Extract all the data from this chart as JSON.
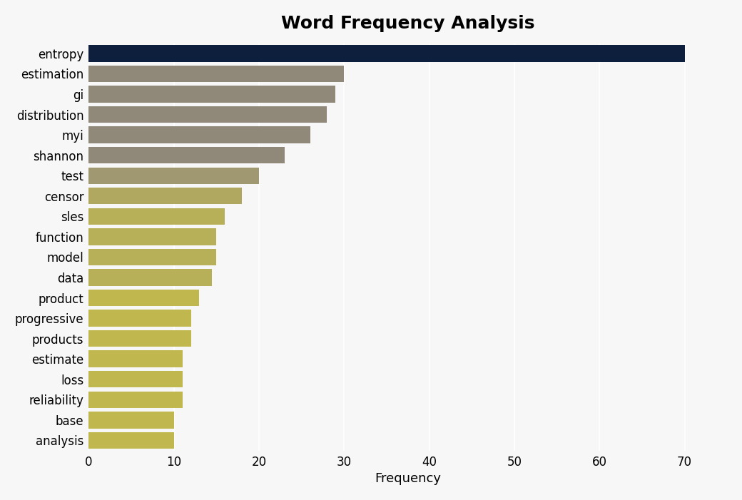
{
  "title": "Word Frequency Analysis",
  "xlabel": "Frequency",
  "categories": [
    "entropy",
    "estimation",
    "gi",
    "distribution",
    "myi",
    "shannon",
    "test",
    "censor",
    "sles",
    "function",
    "model",
    "data",
    "product",
    "progressive",
    "products",
    "estimate",
    "loss",
    "reliability",
    "base",
    "analysis"
  ],
  "values": [
    70,
    30,
    29,
    28,
    26,
    23,
    20,
    18,
    16,
    15,
    15,
    14.5,
    13,
    12,
    12,
    11,
    11,
    11,
    10,
    10
  ],
  "bar_colors": [
    "#0d1f3c",
    "#908878",
    "#908878",
    "#908878",
    "#908878",
    "#908878",
    "#a09870",
    "#b0a860",
    "#b8b058",
    "#b8b058",
    "#b8b058",
    "#b8b058",
    "#c0b84e",
    "#c0b84e",
    "#c0b84e",
    "#c0b84e",
    "#c0b84e",
    "#c0b84e",
    "#c0b84e",
    "#c0b84e"
  ],
  "xlim": [
    0,
    75
  ],
  "xticks": [
    0,
    10,
    20,
    30,
    40,
    50,
    60,
    70
  ],
  "background_color": "#f7f7f7",
  "plot_bg_color": "#f7f7f7",
  "title_fontsize": 18,
  "axis_label_fontsize": 13,
  "tick_fontsize": 12,
  "bar_height": 0.82
}
